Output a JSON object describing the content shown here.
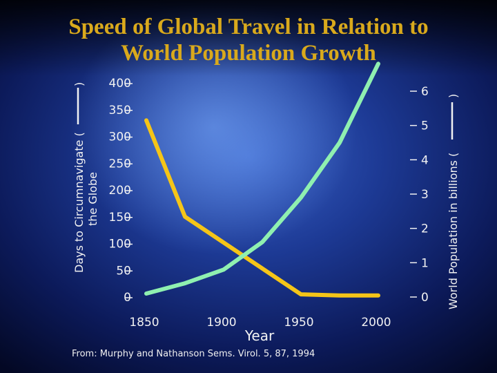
{
  "title_line1": "Speed of Global Travel in Relation to",
  "title_line2": "World Population Growth",
  "source": "From: Murphy and Nathanson Sems. Virol. 5, 87, 1994",
  "colors": {
    "title": "#d9a91c",
    "days_line": "#f5c518",
    "population_line": "#8ff0b0",
    "axis_text": "#f2f2f2"
  },
  "chart_data": {
    "type": "line",
    "xlabel": "Year",
    "ylabel_left": "Days to Circumnavigate the Globe",
    "ylabel_right": "World Population in billions",
    "x_ticks": [
      1850,
      1900,
      1950,
      2000
    ],
    "y_left_ticks": [
      0,
      50,
      100,
      150,
      200,
      250,
      300,
      350,
      400
    ],
    "y_right_ticks": [
      0,
      1,
      2,
      3,
      4,
      5,
      6
    ],
    "xlim": [
      1850,
      2000
    ],
    "ylim_left": [
      0,
      400
    ],
    "ylim_right": [
      0,
      6
    ],
    "legend": "none",
    "grid": false,
    "series": [
      {
        "axis": "left",
        "color": "#f5c518",
        "points": [
          [
            1850,
            330
          ],
          [
            1875,
            150
          ],
          [
            1950,
            5
          ],
          [
            1975,
            3
          ],
          [
            2000,
            3
          ]
        ]
      },
      {
        "axis": "right",
        "color": "#8ff0b0",
        "points": [
          [
            1850,
            0.1
          ],
          [
            1875,
            0.4
          ],
          [
            1900,
            0.8
          ],
          [
            1925,
            1.6
          ],
          [
            1950,
            2.9
          ],
          [
            1975,
            4.5
          ],
          [
            2000,
            6.8
          ]
        ]
      }
    ]
  }
}
